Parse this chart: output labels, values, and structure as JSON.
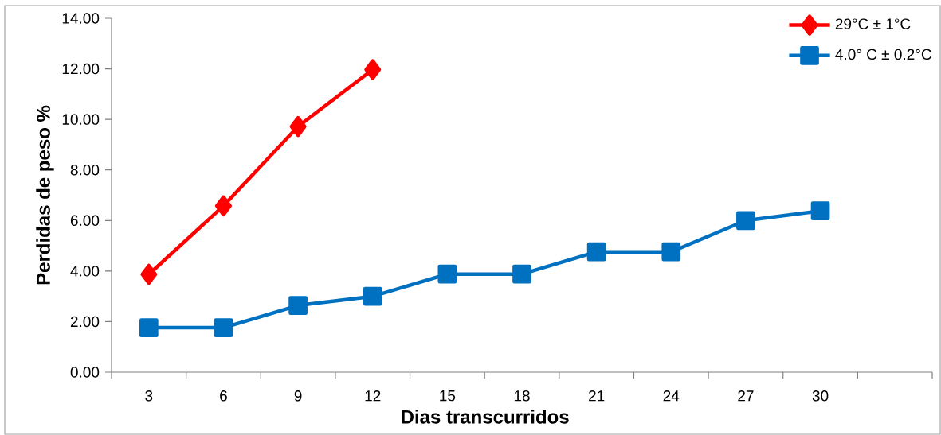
{
  "chart_data": {
    "type": "line",
    "xlabel": "Dias transcurridos",
    "ylabel": "Perdidas de peso %",
    "categories": [
      "3",
      "6",
      "9",
      "12",
      "15",
      "18",
      "21",
      "24",
      "27",
      "30",
      null
    ],
    "series": [
      {
        "name": "29°C ± 1°C",
        "color": "#ff0000",
        "marker": "diamond",
        "values": [
          3.87,
          6.58,
          9.72,
          11.97,
          null,
          null,
          null,
          null,
          null,
          null,
          null
        ]
      },
      {
        "name": "4.0° C ± 0.2°C",
        "color": "#0070c0",
        "marker": "square",
        "values": [
          1.76,
          1.76,
          2.64,
          3.0,
          3.88,
          3.88,
          4.76,
          4.76,
          6.0,
          6.38,
          null
        ]
      }
    ],
    "ylim": [
      0,
      14
    ],
    "yticks": [
      {
        "value": 0,
        "label": "0.00"
      },
      {
        "value": 2,
        "label": "2.00"
      },
      {
        "value": 4,
        "label": "4.00"
      },
      {
        "value": 6,
        "label": "6.00"
      },
      {
        "value": 8,
        "label": "8.00"
      },
      {
        "value": 10,
        "label": "10.00"
      },
      {
        "value": 12,
        "label": "12.00"
      },
      {
        "value": 14,
        "label": "14.00"
      }
    ],
    "legend": "top right",
    "line_style": "solid"
  }
}
